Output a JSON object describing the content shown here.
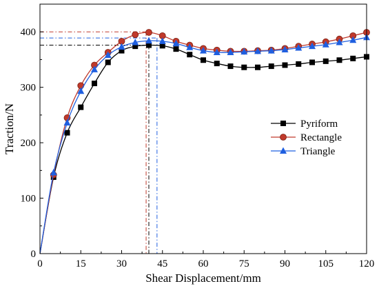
{
  "chart_data": {
    "type": "line",
    "title": "",
    "xlabel": "Shear Displacement/mm",
    "ylabel": "Traction/N",
    "xlim": [
      0,
      120
    ],
    "ylim": [
      0,
      450
    ],
    "xticks": [
      0,
      15,
      30,
      45,
      60,
      75,
      90,
      105,
      120
    ],
    "yticks": [
      0,
      100,
      200,
      300,
      400
    ],
    "grid": false,
    "legend_position": "right",
    "x": [
      0,
      5,
      10,
      15,
      20,
      25,
      30,
      35,
      40,
      45,
      50,
      55,
      60,
      65,
      70,
      75,
      80,
      85,
      90,
      95,
      100,
      105,
      110,
      115,
      120
    ],
    "series": [
      {
        "name": "Pyriform",
        "color": "#000000",
        "marker": "square",
        "values": [
          0,
          138,
          218,
          264,
          307,
          345,
          366,
          374,
          376,
          375,
          369,
          359,
          349,
          343,
          338,
          336,
          336,
          338,
          340,
          342,
          345,
          347,
          349,
          352,
          355
        ],
        "peak": {
          "x": 40,
          "y": 376
        }
      },
      {
        "name": "Rectangle",
        "color": "#c0392b",
        "marker": "circle",
        "values": [
          0,
          142,
          245,
          303,
          340,
          363,
          383,
          395,
          399,
          393,
          383,
          376,
          370,
          367,
          365,
          365,
          366,
          367,
          370,
          374,
          378,
          382,
          387,
          393,
          399
        ],
        "peak": {
          "x": 39,
          "y": 400
        }
      },
      {
        "name": "Triangle",
        "color": "#1f5fe0",
        "marker": "triangle",
        "values": [
          0,
          146,
          236,
          293,
          332,
          358,
          373,
          381,
          384,
          383,
          379,
          372,
          366,
          363,
          363,
          364,
          365,
          366,
          368,
          371,
          374,
          377,
          381,
          385,
          390
        ],
        "peak": {
          "x": 43,
          "y": 389
        }
      }
    ]
  }
}
